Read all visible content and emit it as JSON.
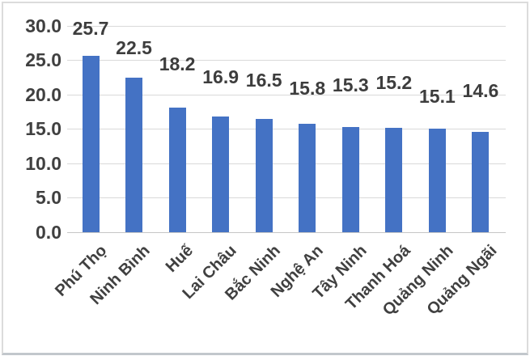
{
  "chart_data": {
    "type": "bar",
    "title": "",
    "xlabel": "",
    "ylabel": "",
    "categories": [
      "Phú Thọ",
      "Ninh Bình",
      "Huế",
      "Lai Châu",
      "Bắc Ninh",
      "Nghệ An",
      "Tây Ninh",
      "Thanh Hoá",
      "Quảng Ninh",
      "Quảng Ngãi"
    ],
    "values": [
      25.7,
      22.5,
      18.2,
      16.9,
      16.5,
      15.8,
      15.3,
      15.2,
      15.1,
      14.6
    ],
    "data_labels": [
      "25.7",
      "22.5",
      "18.2",
      "16.9",
      "16.5",
      "15.8",
      "15.3",
      "15.2",
      "15.1",
      "14.6"
    ],
    "y_tick_labels": [
      "0.0",
      "5.0",
      "10.0",
      "15.0",
      "20.0",
      "25.0",
      "30.0"
    ],
    "y_tick_values": [
      0,
      5,
      10,
      15,
      20,
      25,
      30
    ],
    "ylim": [
      0,
      30
    ],
    "grid": true,
    "legend": false,
    "x_label_rotation_deg": 45,
    "colors": {
      "bar": "#4472c4",
      "text": "#404040",
      "gridline": "#d9d9d9",
      "axis_line": "#c6c6c6",
      "background": "#ffffff",
      "frame_border": "#dcdcdc"
    }
  }
}
